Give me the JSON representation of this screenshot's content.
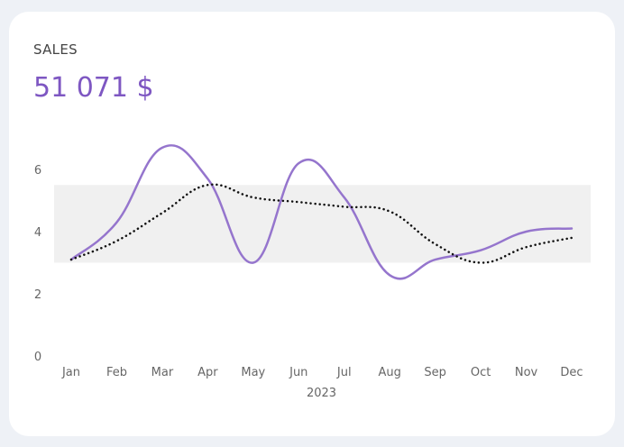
{
  "card": {
    "title": "SALES",
    "value": "51 071 $"
  },
  "colors": {
    "background": "#eef1f6",
    "card": "#ffffff",
    "accent": "#7e57c2",
    "line": "#9575cd",
    "band": "#f0f0f0",
    "trend": "#111111"
  },
  "chart_data": {
    "type": "line",
    "xlabel": "2023",
    "ylabel": "",
    "title": "",
    "x": [
      "Jan",
      "Feb",
      "Mar",
      "Apr",
      "May",
      "Jun",
      "Jul",
      "Aug",
      "Sep",
      "Oct",
      "Nov",
      "Dec"
    ],
    "ylim": [
      0,
      7
    ],
    "yticks": [
      0,
      2,
      4,
      6
    ],
    "grid": false,
    "band": {
      "low": 3.0,
      "high": 5.5
    },
    "series": [
      {
        "style": "solid",
        "color": "#9575cd",
        "values": [
          3.1,
          4.3,
          6.7,
          5.7,
          3.0,
          6.2,
          5.1,
          2.6,
          3.1,
          3.4,
          4.0,
          4.1
        ]
      },
      {
        "style": "dotted",
        "color": "#111111",
        "values": [
          3.1,
          3.7,
          4.6,
          5.5,
          5.1,
          4.95,
          4.8,
          4.65,
          3.6,
          3.0,
          3.5,
          3.8
        ]
      }
    ]
  }
}
